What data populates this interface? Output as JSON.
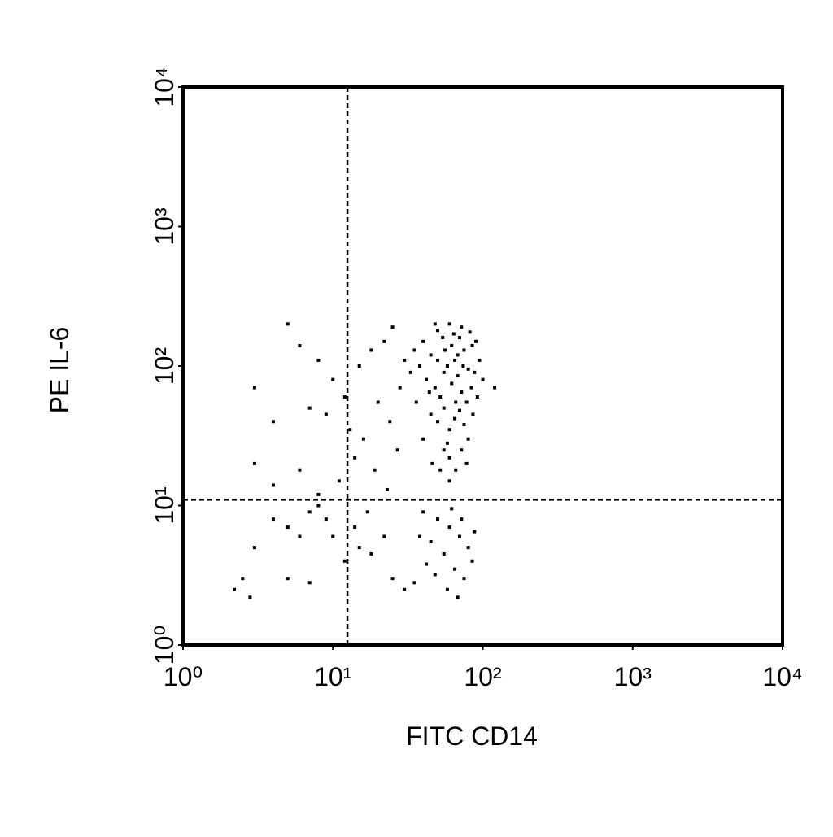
{
  "chart_data": {
    "type": "scatter",
    "x_label": "FITC CD14",
    "y_label": "PE IL-6",
    "xscale": "log",
    "yscale": "log",
    "xlim": [
      1,
      10000
    ],
    "ylim": [
      1,
      10000
    ],
    "xticks": [
      {
        "value": 1,
        "label": "10⁰"
      },
      {
        "value": 10,
        "label": "10¹"
      },
      {
        "value": 100,
        "label": "10²"
      },
      {
        "value": 1000,
        "label": "10³"
      },
      {
        "value": 10000,
        "label": "10⁴"
      }
    ],
    "yticks": [
      {
        "value": 1,
        "label": "10⁰"
      },
      {
        "value": 10,
        "label": "10¹"
      },
      {
        "value": 100,
        "label": "10²"
      },
      {
        "value": 1000,
        "label": "10³"
      },
      {
        "value": 10000,
        "label": "10⁴"
      }
    ],
    "quadrant_x": 12.5,
    "quadrant_y": 11,
    "color": "#000000",
    "x": [
      40,
      45,
      50,
      55,
      60,
      65,
      70,
      75,
      80,
      85,
      42,
      48,
      52,
      58,
      62,
      68,
      72,
      78,
      88,
      95,
      45,
      50,
      55,
      60,
      65,
      70,
      75,
      80,
      55,
      60,
      38,
      44,
      50,
      56,
      64,
      72,
      82,
      90,
      66,
      58,
      48,
      54,
      62,
      68,
      74,
      84,
      92,
      36,
      40,
      46,
      52,
      60,
      66,
      72,
      78,
      86,
      100,
      120,
      35,
      33,
      40,
      50,
      60,
      70,
      80,
      45,
      55,
      65,
      75,
      85,
      38,
      48,
      58,
      68,
      30,
      35,
      42,
      62,
      72,
      88,
      3,
      5,
      6,
      8,
      10,
      12,
      15,
      18,
      22,
      25,
      4,
      7,
      9,
      13,
      16,
      20,
      24,
      28,
      30,
      27,
      3,
      4,
      6,
      8,
      11,
      14,
      19,
      23,
      4,
      5,
      6,
      7,
      8,
      9,
      10,
      3,
      2.5,
      2.2,
      2.8,
      5,
      7,
      12,
      15,
      18,
      22,
      25,
      14,
      17
    ],
    "values": [
      150,
      120,
      180,
      90,
      200,
      110,
      160,
      130,
      95,
      140,
      80,
      70,
      60,
      100,
      75,
      85,
      65,
      55,
      90,
      110,
      45,
      40,
      50,
      35,
      42,
      48,
      38,
      30,
      25,
      22,
      100,
      65,
      110,
      130,
      170,
      190,
      175,
      150,
      55,
      28,
      200,
      160,
      140,
      120,
      100,
      70,
      60,
      55,
      30,
      20,
      18,
      15,
      18,
      25,
      20,
      45,
      80,
      70,
      130,
      90,
      9,
      8,
      7,
      6,
      5,
      5.5,
      4.5,
      3.5,
      3,
      4,
      6,
      3.2,
      2.5,
      2.2,
      2.5,
      2.8,
      3.8,
      9.5,
      8,
      6.5,
      70,
      200,
      140,
      110,
      80,
      60,
      100,
      130,
      150,
      190,
      40,
      50,
      45,
      35,
      30,
      55,
      40,
      70,
      110,
      25,
      20,
      14,
      18,
      12,
      15,
      22,
      18,
      13,
      8,
      7,
      6,
      9,
      10,
      8,
      6,
      5,
      3,
      2.5,
      2.2,
      3,
      2.8,
      4,
      5,
      4.5,
      6,
      3,
      7,
      9
    ]
  }
}
